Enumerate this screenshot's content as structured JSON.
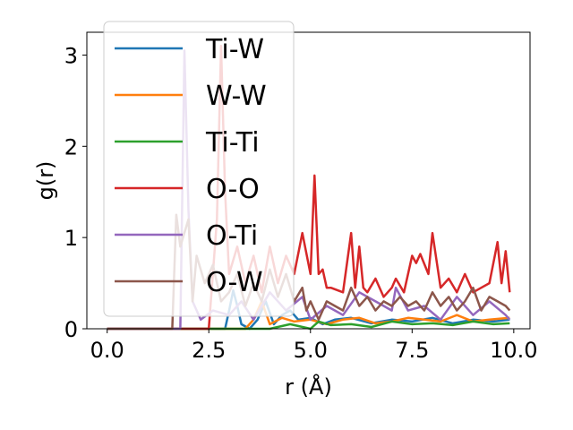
{
  "chart_data": {
    "type": "line",
    "title": "",
    "xlabel": "r (Å)",
    "ylabel": "g(r)",
    "xlim": [
      -0.5,
      10.4
    ],
    "ylim": [
      0,
      3.25
    ],
    "xticks": [
      0.0,
      2.5,
      5.0,
      7.5,
      10.0
    ],
    "xtick_labels": [
      "0.0",
      "2.5",
      "5.0",
      "7.5",
      "10.0"
    ],
    "yticks": [
      0,
      1,
      2,
      3
    ],
    "ytick_labels": [
      "0",
      "1",
      "2",
      "3"
    ],
    "grid": false,
    "legend_position": "top-left",
    "series": [
      {
        "name": "Ti-W",
        "color": "#1f77b4",
        "x": [
          0,
          1,
          2,
          2.9,
          3.0,
          3.1,
          3.2,
          3.3,
          3.5,
          3.7,
          3.9,
          4.1,
          4.3,
          4.5,
          4.7,
          5.0,
          5.3,
          5.6,
          6.0,
          6.5,
          7.0,
          7.5,
          8.0,
          8.5,
          9.0,
          9.5,
          9.9
        ],
        "y": [
          0,
          0,
          0,
          0,
          0.2,
          0.42,
          0.25,
          0.05,
          0,
          0.1,
          0.3,
          0.05,
          0.15,
          0.2,
          0.1,
          0.12,
          0.05,
          0.1,
          0.12,
          0.06,
          0.1,
          0.08,
          0.12,
          0.06,
          0.1,
          0.08,
          0.1
        ]
      },
      {
        "name": "W-W",
        "color": "#ff7f0e",
        "x": [
          0,
          1,
          2,
          3,
          3.4,
          3.6,
          3.8,
          4.0,
          4.3,
          4.6,
          5.0,
          5.4,
          5.8,
          6.2,
          6.6,
          7.0,
          7.4,
          7.8,
          8.2,
          8.6,
          9.0,
          9.4,
          9.9
        ],
        "y": [
          0,
          0,
          0,
          0,
          0,
          0.1,
          0.3,
          0.05,
          0.12,
          0.08,
          0.1,
          0.05,
          0.1,
          0.12,
          0.06,
          0.08,
          0.12,
          0.1,
          0.08,
          0.15,
          0.08,
          0.1,
          0.12
        ]
      },
      {
        "name": "Ti-Ti",
        "color": "#2ca02c",
        "x": [
          0,
          1,
          2,
          3,
          3.5,
          4.0,
          4.5,
          5.0,
          5.2,
          5.5,
          6.0,
          6.5,
          7.0,
          7.5,
          8.0,
          8.5,
          9.0,
          9.5,
          9.9
        ],
        "y": [
          0,
          0,
          0,
          0,
          0,
          0,
          0.05,
          0,
          0.08,
          0.04,
          0.05,
          0.02,
          0.08,
          0.05,
          0.06,
          0.04,
          0.08,
          0.05,
          0.06
        ]
      },
      {
        "name": "O-O",
        "color": "#d62728",
        "x": [
          0,
          1,
          2,
          2.5,
          2.7,
          2.8,
          2.9,
          3.0,
          3.2,
          3.4,
          3.6,
          3.8,
          4.0,
          4.2,
          4.4,
          4.6,
          4.8,
          5.0,
          5.1,
          5.2,
          5.3,
          5.4,
          5.5,
          5.8,
          6.0,
          6.1,
          6.2,
          6.3,
          6.4,
          6.6,
          6.8,
          7.0,
          7.1,
          7.3,
          7.5,
          7.6,
          7.7,
          7.9,
          8.0,
          8.2,
          8.4,
          8.6,
          8.8,
          9.0,
          9.2,
          9.4,
          9.6,
          9.7,
          9.8,
          9.9
        ],
        "y": [
          0,
          0,
          0,
          0,
          1.2,
          3.1,
          1.5,
          0.6,
          0.9,
          0.5,
          0.8,
          0.4,
          0.9,
          0.5,
          0.8,
          0.6,
          1.05,
          0.6,
          1.68,
          0.6,
          0.65,
          0.45,
          0.45,
          0.4,
          1.05,
          0.45,
          0.9,
          0.45,
          0.4,
          0.55,
          0.35,
          0.45,
          0.55,
          0.4,
          0.8,
          0.72,
          0.82,
          0.6,
          1.05,
          0.45,
          0.55,
          0.4,
          0.6,
          0.4,
          0.45,
          0.5,
          0.95,
          0.5,
          0.85,
          0.4
        ]
      },
      {
        "name": "O-Ti",
        "color": "#9467bd",
        "x": [
          0,
          1,
          1.8,
          1.9,
          2.0,
          2.1,
          2.3,
          2.6,
          3.0,
          3.3,
          3.6,
          4.0,
          4.4,
          4.8,
          5.0,
          5.4,
          5.8,
          6.2,
          6.6,
          7.0,
          7.1,
          7.4,
          7.8,
          8.2,
          8.6,
          9.0,
          9.4,
          9.8,
          9.9
        ],
        "y": [
          0,
          0,
          0,
          3.05,
          1.3,
          0.3,
          0.1,
          0.2,
          0.15,
          0.3,
          0.1,
          0.4,
          0.2,
          0.35,
          0.1,
          0.25,
          0.15,
          0.4,
          0.3,
          0.2,
          0.45,
          0.2,
          0.25,
          0.1,
          0.35,
          0.15,
          0.3,
          0.15,
          0.1
        ]
      },
      {
        "name": "O-W",
        "color": "#8c564b",
        "x": [
          0,
          1,
          1.6,
          1.7,
          1.8,
          2.0,
          2.1,
          2.2,
          2.4,
          2.6,
          2.8,
          3.0,
          3.2,
          3.4,
          3.6,
          3.8,
          4.0,
          4.2,
          4.4,
          4.6,
          4.8,
          4.9,
          5.0,
          5.2,
          5.4,
          5.6,
          5.8,
          6.0,
          6.2,
          6.4,
          6.6,
          6.8,
          7.0,
          7.2,
          7.4,
          7.6,
          7.8,
          8.0,
          8.2,
          8.4,
          8.6,
          8.8,
          9.0,
          9.2,
          9.4,
          9.6,
          9.8,
          9.9
        ],
        "y": [
          0,
          0,
          0,
          1.25,
          0.9,
          1.2,
          0.3,
          0.8,
          0.5,
          0.7,
          0.3,
          0.4,
          0.6,
          0.25,
          0.5,
          0.3,
          0.65,
          0.35,
          0.6,
          0.3,
          0.45,
          0.2,
          0.3,
          0.1,
          0.3,
          0.25,
          0.2,
          0.45,
          0.25,
          0.35,
          0.2,
          0.3,
          0.25,
          0.35,
          0.25,
          0.3,
          0.2,
          0.4,
          0.25,
          0.35,
          0.2,
          0.3,
          0.45,
          0.2,
          0.35,
          0.3,
          0.25,
          0.2
        ]
      }
    ]
  }
}
